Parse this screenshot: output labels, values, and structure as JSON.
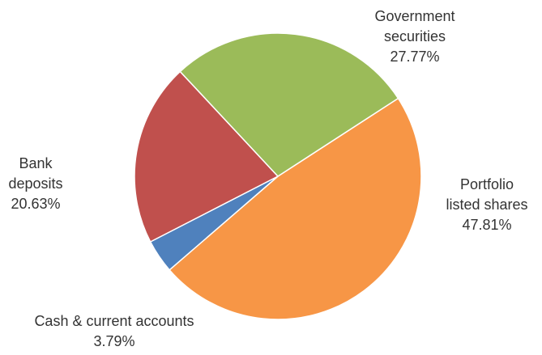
{
  "chart_data": {
    "type": "pie",
    "slices": [
      {
        "label_lines": [
          "Portfolio",
          "listed shares"
        ],
        "value": 47.81,
        "value_label": "47.81%",
        "color": "#f79646"
      },
      {
        "label_lines": [
          "Cash & current accounts"
        ],
        "value": 3.79,
        "value_label": "3.79%",
        "color": "#4f81bd"
      },
      {
        "label_lines": [
          "Bank",
          "deposits"
        ],
        "value": 20.63,
        "value_label": "20.63%",
        "color": "#c0504d"
      },
      {
        "label_lines": [
          "Government",
          "securities"
        ],
        "value": 27.77,
        "value_label": "27.77%",
        "color": "#9bbb59"
      }
    ],
    "start_angle_deg": 57,
    "direction": "clockwise"
  }
}
